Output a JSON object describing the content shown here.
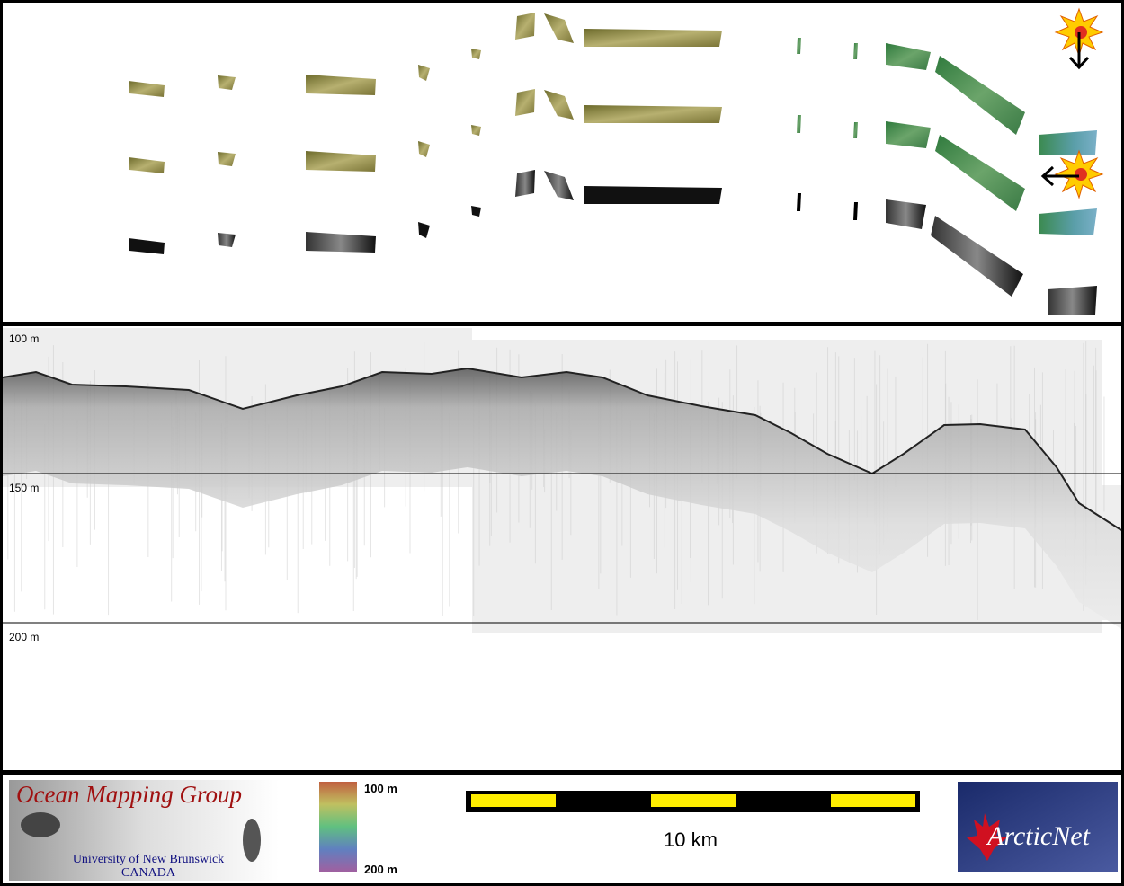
{
  "profile": {
    "depth_labels": [
      "100 m",
      "150 m",
      "200 m"
    ]
  },
  "footer": {
    "logo_left": {
      "title": "Ocean Mapping Group",
      "line1": "University of New Brunswick",
      "line2": "CANADA"
    },
    "colorbar": {
      "top": "100 m",
      "bottom": "200 m"
    },
    "scale_bar": {
      "label": "10 km"
    },
    "logo_right": {
      "text": "ArcticNet"
    }
  }
}
